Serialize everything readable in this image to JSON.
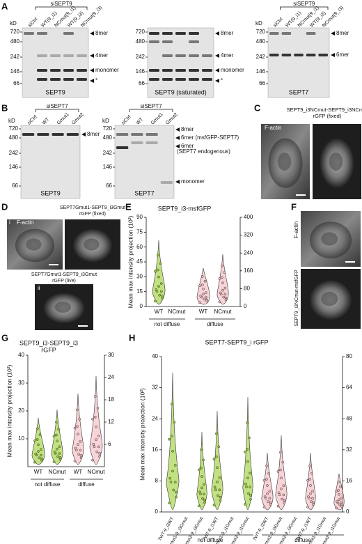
{
  "A": {
    "letter": "A",
    "blots": [
      {
        "kd": "kD",
        "header": "siSEPT9",
        "lanes": [
          "siCtrl",
          "WT(9_i1)",
          "NCmut(9_i1)",
          "WT(9_i3)",
          "NCmut(9_i3)"
        ],
        "markers": [
          "720",
          "480",
          "242",
          "146",
          "66"
        ],
        "bands": [
          "8mer",
          "4mer",
          "monomer",
          "*"
        ],
        "caption": "SEPT9"
      },
      {
        "markers": [
          "720",
          "480",
          "242",
          "146",
          "66"
        ],
        "bands": [
          "8mer",
          "4mer",
          "monomer",
          "*"
        ],
        "caption": "SEPT9 (saturated)"
      },
      {
        "kd": "kD",
        "header": "siSEPT9",
        "lanes": [
          "siCtrl",
          "WT(9_i1)",
          "NCmut(9_i1)",
          "WT(9_i3)",
          "NCmut(9_i3)"
        ],
        "markers": [
          "720",
          "480",
          "242",
          "146",
          "66"
        ],
        "bands": [
          "8mer",
          "6mer"
        ],
        "caption": "SEPT7"
      }
    ]
  },
  "B": {
    "letter": "B",
    "blots": [
      {
        "kd": "kD",
        "header": "siSEPT7",
        "lanes": [
          "siCtrl",
          "WT",
          "Gmut1",
          "Gmut2"
        ],
        "markers": [
          "720",
          "480",
          "242",
          "146",
          "66"
        ],
        "bands": [
          "8mer"
        ],
        "caption": "SEPT9"
      },
      {
        "kd": "kD",
        "header": "siSEPT7",
        "lanes": [
          "siCtrl",
          "WT",
          "Gmut1",
          "Gmut2"
        ],
        "markers": [
          "720",
          "480",
          "242",
          "146",
          "66"
        ],
        "bands": [
          "8mer",
          "6mer (msfGFP-SEPT7)",
          "6mer",
          "(SEPT7 endogenous)",
          "monomer"
        ],
        "caption": "SEPT7"
      }
    ]
  },
  "C": {
    "letter": "C",
    "labels": [
      "F-actin"
    ],
    "caption": [
      "SEPT9_i3NCmut-SEPT9_i3NCmut",
      "rGFP (fixed)"
    ]
  },
  "D": {
    "letter": "D",
    "sub": [
      "i",
      "ii"
    ],
    "labels": [
      "F-actin"
    ],
    "caption1": [
      "SEPT7Gmut1-SEPT9_i3Gmut",
      "rGFP (fixed)"
    ],
    "caption2": [
      "SEPT7Gmut1-SEPT9_i3Gmut",
      "rGFP (live)"
    ]
  },
  "E": {
    "letter": "E",
    "title": [
      "SEPT9_i3-msfGFP"
    ],
    "ylabel": "Mean max intensity projection (10²)",
    "ylim": [
      0,
      90
    ],
    "yticks": [
      0,
      15,
      30,
      45,
      60,
      75,
      90
    ],
    "y2lim": [
      0,
      400
    ],
    "y2ticks": [
      0,
      80,
      160,
      240,
      320,
      400
    ],
    "categories": [
      "WT",
      "NCmut",
      "WT",
      "NCmut"
    ],
    "groups": [
      "not diffuse",
      "diffuse"
    ]
  },
  "F": {
    "letter": "F",
    "labels": [
      "F-actin",
      "SEPT9_i3NCmut-msfGFP"
    ]
  },
  "G": {
    "letter": "G",
    "title": [
      "SEPT9_i3-SEPT9_i3",
      "rGFP"
    ],
    "ylabel": "Mean max intensity projection (10²)",
    "ylim": [
      0,
      40
    ],
    "yticks": [
      10,
      20,
      30,
      40
    ],
    "y2lim": [
      0,
      30
    ],
    "y2ticks": [
      6,
      12,
      18,
      24,
      30
    ],
    "categories": [
      "WT",
      "NCmut",
      "WT",
      "NCmut"
    ],
    "groups": [
      "not diffuse",
      "diffuse"
    ]
  },
  "H": {
    "letter": "H",
    "title": [
      "SEPT7-SEPT9_i rGFP"
    ],
    "ylabel": "Mean max intensity projection (10²)",
    "ylim": [
      0,
      40
    ],
    "yticks": [
      0,
      8,
      16,
      24,
      32,
      40
    ],
    "y2lim": [
      0,
      80
    ],
    "y2ticks": [
      0,
      16,
      32,
      48,
      64,
      80
    ],
    "categories": [
      "7WT-9_i3WT",
      "7Gmut1-9_i3Gmut",
      "7Gmut2-9_i3Gmut",
      "7WT-9_i1WT",
      "7Gmut1-9_i1Gmut",
      "7Gmut2-9_i1Gmut",
      "7WT-9_i3WT",
      "7Gmut1-9_i3Gmut",
      "7Gmut2-9_i3Gmut",
      "7WT-9_i1WT",
      "7Gmut1-9_i1Gmut",
      "7Gmut2-9_i1Gmut"
    ],
    "groups": [
      "not diffuse",
      "diffuse"
    ]
  }
}
